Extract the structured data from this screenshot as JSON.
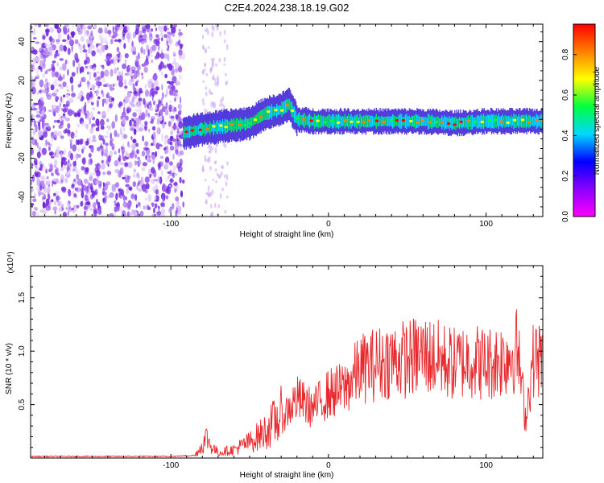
{
  "title": "C2E4.2024.238.18.19.G02",
  "colors": {
    "snr_line": "#e8282c",
    "noise": "#7a2fe0",
    "frame": "#000000"
  },
  "colormap_stops": [
    "#ff00ff",
    "#8b00ff",
    "#0000ff",
    "#00d8ff",
    "#00ff40",
    "#ffff00",
    "#ff8000",
    "#ff0000"
  ],
  "chart_data": [
    {
      "type": "heatmap",
      "title": "C2E4.2024.238.18.19.G02",
      "xlabel": "Height of straight line (km)",
      "ylabel": "Frequency (Hz)",
      "xlim": [
        -189,
        136
      ],
      "ylim": [
        -50,
        49
      ],
      "x_ticks": [
        -100,
        0,
        100
      ],
      "y_ticks": [
        -40,
        -20,
        0,
        20,
        40
      ],
      "grid": false,
      "colorbar": {
        "label": "Normalized spectral amplitude",
        "range": [
          0.0,
          0.95
        ],
        "ticks": [
          0.0,
          0.2,
          0.4,
          0.6,
          0.8
        ]
      },
      "noise_region_x": [
        -189,
        -92
      ],
      "signal_track": {
        "x": [
          -92,
          -80,
          -70,
          -60,
          -50,
          -40,
          -30,
          -25,
          -20,
          -10,
          0,
          20,
          40,
          60,
          80,
          100,
          120,
          136
        ],
        "frequency": [
          -7,
          -5,
          -4,
          -3,
          -2,
          3,
          5,
          8,
          0,
          -1,
          -1,
          -1,
          -1,
          -1,
          -2,
          -1,
          -1,
          -1
        ]
      }
    },
    {
      "type": "line",
      "xlabel": "Height of straight line (km)",
      "ylabel": "SNR (10 * v/v)",
      "y_multiplier": "(x10⁴)",
      "xlim": [
        -189,
        136
      ],
      "ylim": [
        0,
        1.8
      ],
      "x_ticks": [
        -100,
        0,
        100
      ],
      "y_ticks": [
        0.5,
        1.0,
        1.5
      ],
      "grid": false,
      "series": [
        {
          "x": [
            -189,
            -160,
            -130,
            -100,
            -85,
            -80,
            -77,
            -75,
            -70,
            -60,
            -50,
            -40,
            -30,
            -20,
            -10,
            0,
            10,
            20,
            30,
            40,
            50,
            60,
            70,
            80,
            90,
            100,
            110,
            120,
            125,
            130,
            136
          ],
          "values": [
            0.01,
            0.01,
            0.01,
            0.01,
            0.02,
            0.12,
            0.2,
            0.12,
            0.05,
            0.08,
            0.15,
            0.25,
            0.4,
            0.6,
            0.5,
            0.65,
            0.7,
            0.9,
            0.95,
            1.0,
            1.0,
            1.05,
            1.0,
            0.95,
            1.0,
            0.95,
            1.0,
            1.1,
            0.4,
            1.0,
            1.0
          ]
        }
      ]
    }
  ]
}
